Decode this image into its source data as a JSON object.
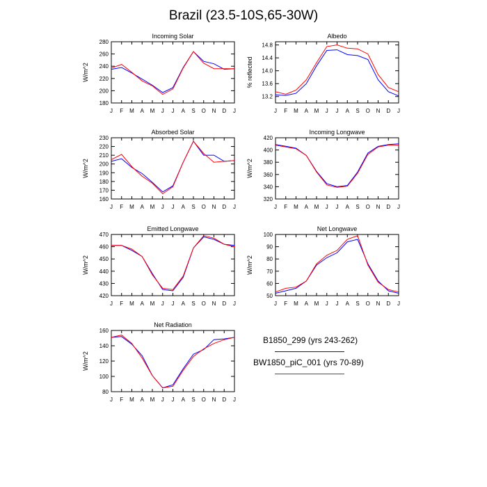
{
  "figure": {
    "title": "Brazil (23.5-10S,65-30W)"
  },
  "legend": {
    "entries": [
      {
        "label": "B1850_299 (yrs 243-262)",
        "color": "#0000ff"
      },
      {
        "label": "BW1850_piC_001 (yrs 70-89)",
        "color": "#ff0000"
      }
    ]
  },
  "chart_data": [
    {
      "type": "line",
      "title": "Incoming Solar",
      "ylabel": "W/m^2",
      "xlabel": "",
      "categories": [
        "J",
        "F",
        "M",
        "A",
        "M",
        "J",
        "J",
        "A",
        "S",
        "O",
        "N",
        "D",
        "J"
      ],
      "ylim": [
        180,
        280
      ],
      "yticks": [
        180,
        200,
        220,
        240,
        260,
        280
      ],
      "series": [
        {
          "name": "B1850_299 (yrs 243-262)",
          "color": "#0000ff",
          "values": [
            235,
            238,
            229,
            219,
            209,
            197,
            205,
            238,
            264,
            248,
            244,
            235,
            236
          ]
        },
        {
          "name": "BW1850_piC_001 (yrs 70-89)",
          "color": "#ff0000",
          "values": [
            237,
            243,
            230,
            216,
            208,
            194,
            203,
            237,
            264,
            245,
            236,
            236,
            236
          ]
        }
      ]
    },
    {
      "type": "line",
      "title": "Albedo",
      "ylabel": "% reflected",
      "xlabel": "",
      "categories": [
        "J",
        "F",
        "M",
        "A",
        "M",
        "J",
        "J",
        "A",
        "S",
        "O",
        "N",
        "D",
        "J"
      ],
      "ylim": [
        13.0,
        14.9
      ],
      "yticks": [
        13.2,
        13.6,
        14.0,
        14.4,
        14.8
      ],
      "yticklabels": [
        "13.2",
        "13.6",
        "14.0",
        "14.4",
        "14.8"
      ],
      "series": [
        {
          "name": "B1850_299 (yrs 243-262)",
          "color": "#0000ff",
          "values": [
            13.25,
            13.23,
            13.3,
            13.6,
            14.15,
            14.63,
            14.65,
            14.5,
            14.47,
            14.35,
            13.72,
            13.35,
            13.22
          ]
        },
        {
          "name": "BW1850_piC_001 (yrs 70-89)",
          "color": "#ff0000",
          "values": [
            13.35,
            13.27,
            13.4,
            13.72,
            14.25,
            14.75,
            14.8,
            14.7,
            14.68,
            14.52,
            13.88,
            13.48,
            13.35
          ]
        }
      ]
    },
    {
      "type": "line",
      "title": "Absorbed Solar",
      "ylabel": "W/m^2",
      "xlabel": "",
      "categories": [
        "J",
        "F",
        "M",
        "A",
        "M",
        "J",
        "J",
        "A",
        "S",
        "O",
        "N",
        "D",
        "J"
      ],
      "ylim": [
        160,
        230
      ],
      "yticks": [
        160,
        170,
        180,
        190,
        200,
        210,
        220,
        230
      ],
      "series": [
        {
          "name": "B1850_299 (yrs 243-262)",
          "color": "#0000ff",
          "values": [
            203,
            206,
            196,
            189,
            179,
            168,
            175,
            202,
            226,
            210,
            210,
            203,
            204
          ]
        },
        {
          "name": "BW1850_piC_001 (yrs 70-89)",
          "color": "#ff0000",
          "values": [
            205,
            211,
            197,
            186,
            178,
            166,
            174,
            202,
            226,
            212,
            202,
            203,
            204
          ]
        }
      ]
    },
    {
      "type": "line",
      "title": "Incoming Longwave",
      "ylabel": "W/m^2",
      "xlabel": "",
      "categories": [
        "J",
        "F",
        "M",
        "A",
        "M",
        "J",
        "J",
        "A",
        "S",
        "O",
        "N",
        "D",
        "J"
      ],
      "ylim": [
        320,
        420
      ],
      "yticks": [
        320,
        340,
        360,
        380,
        400,
        420
      ],
      "series": [
        {
          "name": "B1850_299 (yrs 243-262)",
          "color": "#0000ff",
          "values": [
            409,
            406,
            403,
            391,
            365,
            345,
            340,
            342,
            364,
            395,
            406,
            409,
            410
          ]
        },
        {
          "name": "BW1850_piC_001 (yrs 70-89)",
          "color": "#ff0000",
          "values": [
            408,
            405,
            402,
            391,
            364,
            343,
            339,
            341,
            362,
            393,
            405,
            408,
            408
          ]
        }
      ]
    },
    {
      "type": "line",
      "title": "Emitted Longwave",
      "ylabel": "W/m^2",
      "xlabel": "",
      "categories": [
        "J",
        "F",
        "M",
        "A",
        "M",
        "J",
        "J",
        "A",
        "S",
        "O",
        "N",
        "D",
        "J"
      ],
      "ylim": [
        420,
        470
      ],
      "yticks": [
        420,
        430,
        440,
        450,
        460,
        470
      ],
      "series": [
        {
          "name": "B1850_299 (yrs 243-262)",
          "color": "#0000ff",
          "values": [
            461,
            461,
            457,
            452,
            438,
            425,
            424,
            435,
            459,
            468,
            466,
            462,
            461
          ]
        },
        {
          "name": "BW1850_piC_001 (yrs 70-89)",
          "color": "#ff0000",
          "values": [
            461,
            461,
            458,
            452,
            437,
            426,
            425,
            436,
            459,
            469,
            467,
            462,
            460
          ]
        }
      ]
    },
    {
      "type": "line",
      "title": "Net Longwave",
      "ylabel": "W/m^2",
      "xlabel": "",
      "categories": [
        "J",
        "F",
        "M",
        "A",
        "M",
        "J",
        "J",
        "A",
        "S",
        "O",
        "N",
        "D",
        "J"
      ],
      "ylim": [
        50,
        100
      ],
      "yticks": [
        50,
        60,
        70,
        80,
        90,
        100
      ],
      "series": [
        {
          "name": "B1850_299 (yrs 243-262)",
          "color": "#0000ff",
          "values": [
            52,
            54,
            56,
            62,
            75,
            81,
            85,
            94,
            96,
            76,
            62,
            54,
            52
          ]
        },
        {
          "name": "BW1850_piC_001 (yrs 70-89)",
          "color": "#ff0000",
          "values": [
            53,
            56,
            57,
            62,
            76,
            83,
            87,
            96,
            99,
            75,
            61,
            55,
            53
          ]
        }
      ]
    },
    {
      "type": "line",
      "title": "Net Radiation",
      "ylabel": "W/m^2",
      "xlabel": "",
      "categories": [
        "J",
        "F",
        "M",
        "A",
        "M",
        "J",
        "J",
        "A",
        "S",
        "O",
        "N",
        "D",
        "J"
      ],
      "ylim": [
        80,
        160
      ],
      "yticks": [
        80,
        100,
        120,
        140,
        160
      ],
      "series": [
        {
          "name": "B1850_299 (yrs 243-262)",
          "color": "#0000ff",
          "values": [
            151,
            152,
            142,
            127,
            101,
            85,
            89,
            110,
            129,
            135,
            148,
            149,
            151
          ]
        },
        {
          "name": "BW1850_piC_001 (yrs 70-89)",
          "color": "#ff0000",
          "values": [
            151,
            154,
            143,
            124,
            101,
            85,
            87,
            108,
            126,
            136,
            143,
            148,
            151
          ]
        }
      ]
    }
  ]
}
